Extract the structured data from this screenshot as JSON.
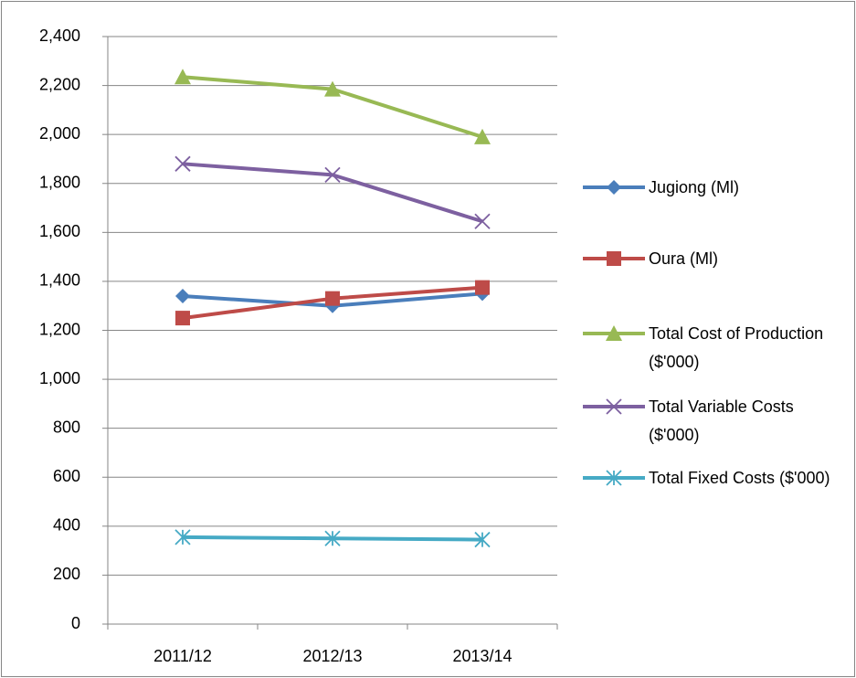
{
  "chart_data": {
    "type": "line",
    "categories": [
      "2011/12",
      "2012/13",
      "2013/14"
    ],
    "series": [
      {
        "name": "Jugiong (Ml)",
        "color": "#4a7ebb",
        "marker": "diamond",
        "values": [
          1340,
          1300,
          1350
        ]
      },
      {
        "name": "Oura (Ml)",
        "color": "#be4b48",
        "marker": "square",
        "values": [
          1250,
          1330,
          1375
        ]
      },
      {
        "name": "Total Cost of Production ($'000)",
        "color": "#98b954",
        "marker": "triangle",
        "values": [
          2235,
          2185,
          1990
        ]
      },
      {
        "name": "Total Variable Costs ($'000)",
        "color": "#7d60a0",
        "marker": "x",
        "values": [
          1880,
          1835,
          1645
        ]
      },
      {
        "name": "Total Fixed Costs ($'000)",
        "color": "#46aac5",
        "marker": "star",
        "values": [
          355,
          350,
          345
        ]
      }
    ],
    "ylim": [
      0,
      2400
    ],
    "yticks": [
      0,
      200,
      400,
      600,
      800,
      {
        "value": 1000,
        "label": "1,000"
      },
      {
        "value": 1200,
        "label": "1,200"
      },
      {
        "value": 1400,
        "label": "1,400"
      },
      {
        "value": 1600,
        "label": "1,600"
      },
      {
        "value": 1800,
        "label": "1,800"
      },
      {
        "value": 2000,
        "label": "2,000"
      },
      {
        "value": 2200,
        "label": "2,200"
      },
      {
        "value": 2400,
        "label": "2,400"
      }
    ],
    "grid": true,
    "legend": "right"
  }
}
